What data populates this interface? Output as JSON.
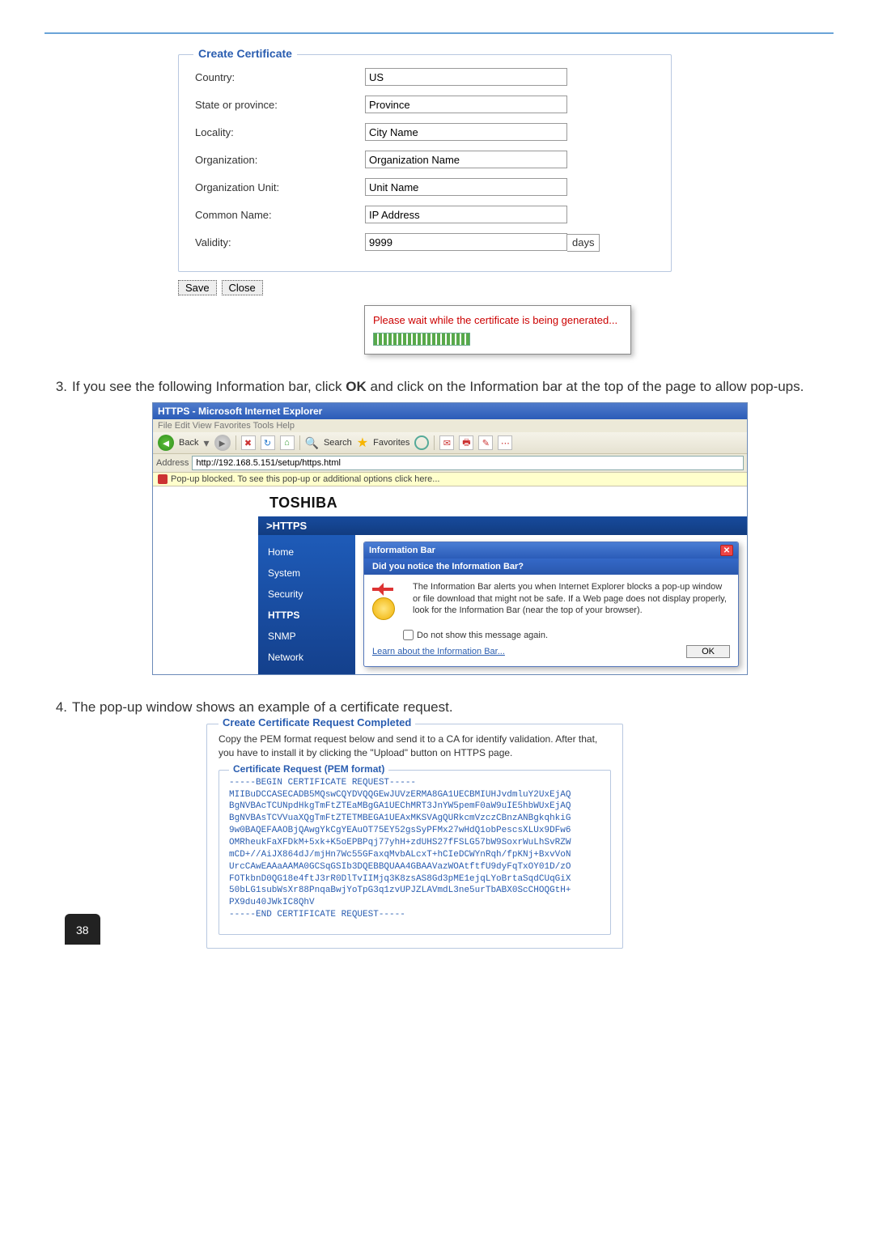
{
  "page_number": "38",
  "cert_form": {
    "legend": "Create Certificate",
    "rows": [
      {
        "label": "Country:",
        "value": "US"
      },
      {
        "label": "State or province:",
        "value": "Province"
      },
      {
        "label": "Locality:",
        "value": "City Name"
      },
      {
        "label": "Organization:",
        "value": "Organization Name"
      },
      {
        "label": "Organization Unit:",
        "value": "Unit Name"
      },
      {
        "label": "Common Name:",
        "value": "IP Address"
      }
    ],
    "validity_label": "Validity:",
    "validity_value": "9999",
    "validity_unit": "days",
    "save": "Save",
    "close": "Close",
    "wait": "Please wait while the certificate is being generated..."
  },
  "step3": {
    "num": "3.",
    "text_a": "If you see the following Information bar, click ",
    "bold": "OK",
    "text_b": " and click on the Information bar at the top of the page to allow pop-ups."
  },
  "ie": {
    "title": "HTTPS - Microsoft Internet Explorer",
    "menu": "File   Edit   View   Favorites   Tools   Help",
    "back": "Back",
    "search": "Search",
    "fav": "Favorites",
    "addr_label": "Address",
    "addr": "http://192.168.5.151/setup/https.html",
    "infobar": "Pop-up blocked. To see this pop-up or additional options click here...",
    "brand": "TOSHIBA",
    "https": ">HTTPS",
    "side": [
      "Home",
      "System",
      "Security",
      "HTTPS",
      "SNMP",
      "Network"
    ],
    "side_bold_index": 3,
    "dlg_title": "Information Bar",
    "dlg_band": "Did you notice the Information Bar?",
    "dlg_body": "The Information Bar alerts you when Internet Explorer blocks a pop-up window or file download that might not be safe. If a Web page does not display properly, look for the Information Bar (near the top of your browser).",
    "dlg_check": "Do not show this message again.",
    "dlg_learn": "Learn about the Information Bar...",
    "dlg_ok": "OK"
  },
  "step4": {
    "num": "4.",
    "text": "The pop-up window shows an example of a certificate request."
  },
  "req": {
    "legend": "Create Certificate Request Completed",
    "inst": "Copy the PEM format request below and send it to a CA for identify validation. After that, you have to install it by clicking the \"Upload\" button on HTTPS page.",
    "pem_legend": "Certificate Request (PEM format)",
    "pem": "-----BEGIN CERTIFICATE REQUEST-----\nMIIBuDCCASECADB5MQswCQYDVQQGEwJUVzERMA8GA1UECBMIUHJvdmluY2UxEjAQ\nBgNVBAcTCUNpdHkgTmFtZTEaMBgGA1UEChMRT3JnYW5pemF0aW9uIE5hbWUxEjAQ\nBgNVBAsTCVVuaXQgTmFtZTETMBEGA1UEAxMKSVAgQURkcmVzczCBnzANBgkqhkiG\n9w0BAQEFAAOBjQAwgYkCgYEAuOT75EY52gsSyPFMx27wHdQ1obPescsXLUx9DFw6\nOMRheukFaXFDkM+5xk+K5oEPBPqj77yhH+zdUHS27fFSLG57bW9SoxrWuLhSvRZW\nmCD+//AiJX864dJ/mjHn7Wc55GFaxqMvbALcxT+hCIeDCWYnRqh/fpKNj+BxvVoN\nUrcCAwEAAaAAMA0GCSqGSIb3DQEBBQUAA4GBAAVazWOAtftfU9dyFqTxOY01D/zO\nFOTkbnD0QG18e4ftJ3rR0DlTvIIMjq3K8zsAS8Gd3pME1ejqLYoBrtaSqdCUqGiX\n50bLG1subWsXr88PnqaBwjYoTpG3q1zvUPJZLAVmdL3ne5urTbABX0ScCHOQGtH+\nPX9du40JWkIC8QhV\n-----END CERTIFICATE REQUEST-----"
  }
}
